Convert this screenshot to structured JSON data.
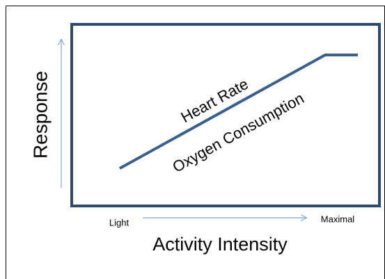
{
  "y_axis": {
    "label": "Response"
  },
  "x_axis": {
    "label": "Activity Intensity",
    "start": "Light",
    "end": "Maximal"
  },
  "curve_labels": {
    "upper": "Heart Rate",
    "lower": "Oxygen Consumption"
  }
}
